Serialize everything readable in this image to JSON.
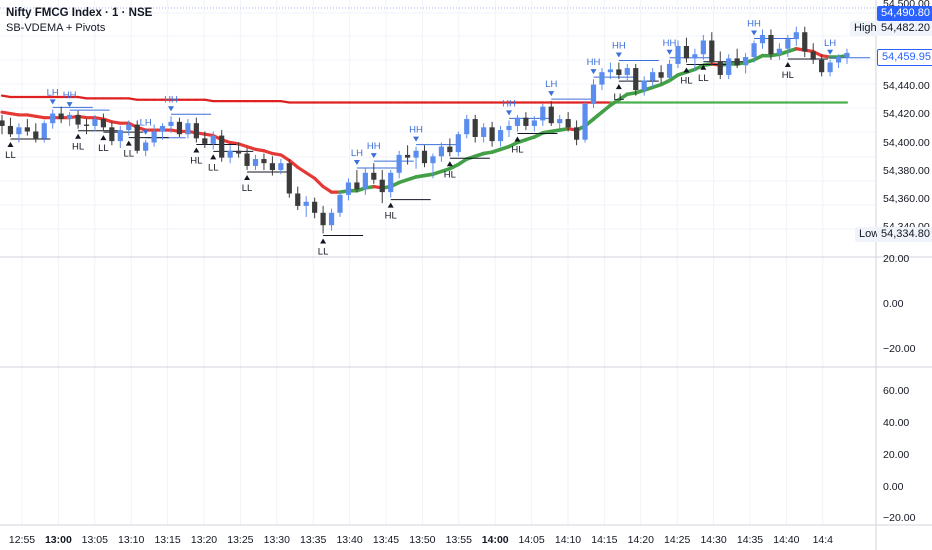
{
  "header": {
    "symbol": "Nifty FMCG Index · 1 · NSE",
    "indicator": "SB-VDEMA + Pivots"
  },
  "price_tags": {
    "last": "54,490.80",
    "high_label": "High",
    "high": "54,482.20",
    "current": "54,459.95",
    "low_label": "Low",
    "low": "54,334.80"
  },
  "colors": {
    "up": "#5b8def",
    "down": "#3b3b3b",
    "ema_fast_down": "#e53935",
    "ema_slow_down": "#e02020",
    "ema_fast_up": "#43a047",
    "ema_slow_up": "#4caf50",
    "pivot_high": "#3b6fd9",
    "pivot_low": "#131722",
    "grid": "#f0f3fa"
  },
  "chart_data": {
    "type": "candlestick",
    "price_axis": {
      "ticks": [
        "54,500.00",
        "54,482.20",
        "54,460.00",
        "54,440.00",
        "54,420.00",
        "54,400.00",
        "54,380.00",
        "54,360.00",
        "54,340.00"
      ],
      "ylim": [
        54320,
        54505
      ]
    },
    "osc1_axis": {
      "ticks": [
        "20.00",
        "0.00",
        "−20.00"
      ]
    },
    "osc2_axis": {
      "ticks": [
        "60.00",
        "40.00",
        "20.00",
        "0.00",
        "−20.00"
      ]
    },
    "time_axis": {
      "labels": [
        "12:55",
        "13:00",
        "13:05",
        "13:10",
        "13:15",
        "13:20",
        "13:25",
        "13:30",
        "13:35",
        "13:40",
        "13:45",
        "13:50",
        "13:55",
        "14:00",
        "14:05",
        "14:10",
        "14:15",
        "14:20",
        "14:25",
        "14:30",
        "14:35",
        "14:40",
        "14:4"
      ],
      "bold": [
        "13:00",
        "14:00"
      ]
    },
    "candles": [
      [
        54414,
        54418,
        54404,
        54410
      ],
      [
        54410,
        54416,
        54402,
        54404
      ],
      [
        54404,
        54412,
        54398,
        54409
      ],
      [
        54409,
        54415,
        54403,
        54406
      ],
      [
        54406,
        54412,
        54398,
        54401
      ],
      [
        54401,
        54414,
        54398,
        54412
      ],
      [
        54412,
        54422,
        54408,
        54419
      ],
      [
        54419,
        54424,
        54412,
        54415
      ],
      [
        54415,
        54420,
        54410,
        54418
      ],
      [
        54418,
        54421,
        54408,
        54411
      ],
      [
        54411,
        54415,
        54404,
        54410
      ],
      [
        54410,
        54418,
        54406,
        54415
      ],
      [
        54415,
        54419,
        54407,
        54409
      ],
      [
        54409,
        54413,
        54396,
        54399
      ],
      [
        54399,
        54410,
        54394,
        54407
      ],
      [
        54407,
        54414,
        54403,
        54411
      ],
      [
        54411,
        54414,
        54390,
        54392
      ],
      [
        54392,
        54400,
        54388,
        54398
      ],
      [
        54398,
        54411,
        54395,
        54406
      ],
      [
        54406,
        54412,
        54400,
        54410
      ],
      [
        54410,
        54417,
        54405,
        54413
      ],
      [
        54413,
        54416,
        54402,
        54404
      ],
      [
        54404,
        54415,
        54401,
        54412
      ],
      [
        54412,
        54416,
        54398,
        54401
      ],
      [
        54401,
        54406,
        54394,
        54397
      ],
      [
        54397,
        54406,
        54393,
        54403
      ],
      [
        54403,
        54407,
        54384,
        54387
      ],
      [
        54387,
        54396,
        54383,
        54392
      ],
      [
        54392,
        54398,
        54387,
        54390
      ],
      [
        54390,
        54394,
        54378,
        54381
      ],
      [
        54381,
        54389,
        54378,
        54386
      ],
      [
        54386,
        54390,
        54378,
        54383
      ],
      [
        54383,
        54388,
        54374,
        54378
      ],
      [
        54378,
        54386,
        54375,
        54383
      ],
      [
        54383,
        54386,
        54358,
        54361
      ],
      [
        54361,
        54366,
        54349,
        54352
      ],
      [
        54352,
        54359,
        54344,
        54355
      ],
      [
        54355,
        54358,
        54343,
        54347
      ],
      [
        54347,
        54352,
        54332,
        54338
      ],
      [
        54338,
        54350,
        54334,
        54347
      ],
      [
        54347,
        54362,
        54344,
        54360
      ],
      [
        54360,
        54372,
        54356,
        54369
      ],
      [
        54369,
        54378,
        54362,
        54364
      ],
      [
        54364,
        54380,
        54360,
        54376
      ],
      [
        54376,
        54383,
        54368,
        54371
      ],
      [
        54371,
        54378,
        54354,
        54362
      ],
      [
        54362,
        54378,
        54358,
        54376
      ],
      [
        54376,
        54392,
        54372,
        54389
      ],
      [
        54389,
        54396,
        54382,
        54387
      ],
      [
        54387,
        54395,
        54379,
        54392
      ],
      [
        54392,
        54396,
        54380,
        54383
      ],
      [
        54383,
        54390,
        54372,
        54388
      ],
      [
        54388,
        54398,
        54384,
        54395
      ],
      [
        54395,
        54401,
        54388,
        54391
      ],
      [
        54391,
        54406,
        54388,
        54404
      ],
      [
        54404,
        54418,
        54401,
        54415
      ],
      [
        54415,
        54418,
        54398,
        54402
      ],
      [
        54402,
        54412,
        54398,
        54409
      ],
      [
        54409,
        54413,
        54395,
        54399
      ],
      [
        54399,
        54410,
        54395,
        54407
      ],
      [
        54407,
        54414,
        54402,
        54410
      ],
      [
        54410,
        54418,
        54406,
        54416
      ],
      [
        54416,
        54420,
        54407,
        54410
      ],
      [
        54410,
        54417,
        54406,
        54414
      ],
      [
        54414,
        54426,
        54410,
        54424
      ],
      [
        54424,
        54428,
        54410,
        54412
      ],
      [
        54412,
        54418,
        54408,
        54415
      ],
      [
        54415,
        54420,
        54406,
        54409
      ],
      [
        54409,
        54414,
        54396,
        54400
      ],
      [
        54400,
        54428,
        54398,
        54426
      ],
      [
        54426,
        54444,
        54423,
        54440
      ],
      [
        54440,
        54452,
        54436,
        54449
      ],
      [
        54449,
        54456,
        54444,
        54451
      ],
      [
        54451,
        54456,
        54444,
        54447
      ],
      [
        54447,
        54455,
        54442,
        54452
      ],
      [
        54452,
        54455,
        54432,
        54436
      ],
      [
        54436,
        54446,
        54432,
        54443
      ],
      [
        54443,
        54452,
        54438,
        54449
      ],
      [
        54449,
        54454,
        54441,
        54445
      ],
      [
        54445,
        54458,
        54442,
        54455
      ],
      [
        54455,
        54472,
        54452,
        54468
      ],
      [
        54468,
        54474,
        54456,
        54459
      ],
      [
        54459,
        54466,
        54450,
        54462
      ],
      [
        54462,
        54476,
        54458,
        54472
      ],
      [
        54472,
        54478,
        54454,
        54457
      ],
      [
        54457,
        54464,
        54444,
        54447
      ],
      [
        54447,
        54462,
        54444,
        54459
      ],
      [
        54459,
        54466,
        54452,
        54454
      ],
      [
        54454,
        54463,
        54448,
        54460
      ],
      [
        54460,
        54472,
        54456,
        54470
      ],
      [
        54470,
        54480,
        54466,
        54476
      ],
      [
        54476,
        54480,
        54458,
        54462
      ],
      [
        54462,
        54470,
        54458,
        54466
      ],
      [
        54466,
        54476,
        54460,
        54473
      ],
      [
        54473,
        54482,
        54468,
        54478
      ],
      [
        54478,
        54482,
        54460,
        54464
      ],
      [
        54464,
        54470,
        54455,
        54458
      ],
      [
        54458,
        54462,
        54446,
        54449
      ],
      [
        54449,
        54458,
        54446,
        54456
      ],
      [
        54456,
        54462,
        54452,
        54460
      ],
      [
        54460,
        54466,
        54455,
        54463
      ]
    ],
    "series": [
      {
        "name": "EMA fast",
        "values": [
          54420,
          54419,
          54418,
          54418,
          54417,
          54416,
          54416,
          54416,
          54416,
          54417,
          54416,
          54416,
          54415,
          54413,
          54412,
          54412,
          54409,
          54407,
          54407,
          54407,
          54407,
          54406,
          54406,
          54405,
          54404,
          54403,
          54400,
          54398,
          54397,
          54395,
          54393,
          54392,
          54390,
          54389,
          54385,
          54380,
          54376,
          54372,
          54366,
          54362,
          54362,
          54363,
          54363,
          54365,
          54366,
          54365,
          54366,
          54369,
          54371,
          54373,
          54374,
          54375,
          54377,
          54379,
          54382,
          54386,
          54388,
          54390,
          54391,
          54393,
          54395,
          54398,
          54400,
          54402,
          54405,
          54406,
          54407,
          54408,
          54407,
          54410,
          54415,
          54420,
          54425,
          54429,
          54433,
          54434,
          54436,
          54438,
          54440,
          54443,
          54447,
          54449,
          54451,
          54454,
          54455,
          54454,
          54455,
          54455,
          54456,
          54458,
          54461,
          54461,
          54462,
          54464,
          54466,
          54465,
          54464,
          54461,
          54460,
          54460,
          54461
        ]
      },
      {
        "name": "EMA slow",
        "values": [
          54432,
          54431,
          54431,
          54431,
          54431,
          54431,
          54431,
          54431,
          54431,
          54431,
          54430,
          54430,
          54430,
          54430,
          54430,
          54430,
          54429,
          54429,
          54429,
          54429,
          54429,
          54429,
          54429,
          54429,
          54429,
          54428,
          54428,
          54428,
          54428,
          54428,
          54428,
          54428,
          54428,
          54428,
          54427,
          54427,
          54427,
          54427,
          54427,
          54427,
          54427,
          54427,
          54427,
          54427,
          54427,
          54427,
          54427,
          54427,
          54427,
          54427,
          54427,
          54427,
          54427,
          54427,
          54427,
          54427,
          54427,
          54427,
          54427,
          54427,
          54427,
          54427,
          54427,
          54427,
          54427,
          54427,
          54427,
          54427,
          54427,
          54427,
          54427,
          54427,
          54427,
          54427,
          54427,
          54427,
          54427,
          54427,
          54427,
          54427,
          54427,
          54427,
          54427,
          54427,
          54427,
          54427,
          54427,
          54427,
          54427,
          54427,
          54427,
          54427,
          54427,
          54427,
          54427,
          54427,
          54427,
          54427,
          54427,
          54427,
          54427
        ]
      }
    ],
    "pivots": [
      {
        "i": 6,
        "label": "LH",
        "kind": "high"
      },
      {
        "i": 8,
        "label": "HH",
        "kind": "high"
      },
      {
        "i": 17,
        "label": "LH",
        "kind": "high"
      },
      {
        "i": 20,
        "label": "HH",
        "kind": "high"
      },
      {
        "i": 42,
        "label": "LH",
        "kind": "high"
      },
      {
        "i": 44,
        "label": "HH",
        "kind": "high"
      },
      {
        "i": 49,
        "label": "HH",
        "kind": "high"
      },
      {
        "i": 60,
        "label": "HH",
        "kind": "high"
      },
      {
        "i": 65,
        "label": "LH",
        "kind": "high"
      },
      {
        "i": 70,
        "label": "HH",
        "kind": "high"
      },
      {
        "i": 73,
        "label": "HH",
        "kind": "high"
      },
      {
        "i": 79,
        "label": "HH",
        "kind": "high"
      },
      {
        "i": 89,
        "label": "HH",
        "kind": "high"
      },
      {
        "i": 98,
        "label": "LH",
        "kind": "high"
      },
      {
        "i": 1,
        "label": "LL",
        "kind": "low"
      },
      {
        "i": 9,
        "label": "HL",
        "kind": "low"
      },
      {
        "i": 12,
        "label": "LL",
        "kind": "low"
      },
      {
        "i": 15,
        "label": "LL",
        "kind": "low"
      },
      {
        "i": 23,
        "label": "HL",
        "kind": "low"
      },
      {
        "i": 25,
        "label": "LL",
        "kind": "low"
      },
      {
        "i": 29,
        "label": "LL",
        "kind": "low"
      },
      {
        "i": 38,
        "label": "LL",
        "kind": "low"
      },
      {
        "i": 46,
        "label": "HL",
        "kind": "low"
      },
      {
        "i": 53,
        "label": "HL",
        "kind": "low"
      },
      {
        "i": 61,
        "label": "HL",
        "kind": "low"
      },
      {
        "i": 73,
        "label": "LL",
        "kind": "low"
      },
      {
        "i": 81,
        "label": "HL",
        "kind": "low"
      },
      {
        "i": 83,
        "label": "LL",
        "kind": "low"
      },
      {
        "i": 93,
        "label": "HL",
        "kind": "low"
      },
      {
        "i": 104,
        "label": "LL",
        "kind": "low"
      }
    ]
  }
}
